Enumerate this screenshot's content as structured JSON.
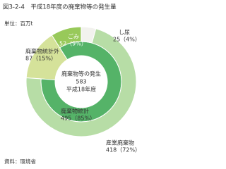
{
  "chart_data": {
    "type": "donut",
    "title": "図3-2-4　平成18年度の廃棄物等の発生量",
    "unit": "単位：百万t",
    "center": {
      "title": "廃棄物等の発生",
      "value": 583,
      "period": "平成18年度"
    },
    "inner": {
      "categories": [
        "廃棄物統計外",
        "廃棄物統計"
      ],
      "values": [
        87,
        495
      ],
      "value_labels": [
        "87（15%）",
        "495（85%）"
      ],
      "colors": [
        "#d5e29a",
        "#55b368"
      ]
    },
    "outer": {
      "categories": [
        "ごみ",
        "し尿",
        "産業廃棄物"
      ],
      "values": [
        52,
        25,
        418
      ],
      "value_labels": [
        "52（9%）",
        "25（4%）",
        "418（72%）"
      ],
      "colors": [
        "#98c95a",
        "#f2f2ee",
        "#b7dda6"
      ]
    },
    "source": "資料：環境省"
  }
}
